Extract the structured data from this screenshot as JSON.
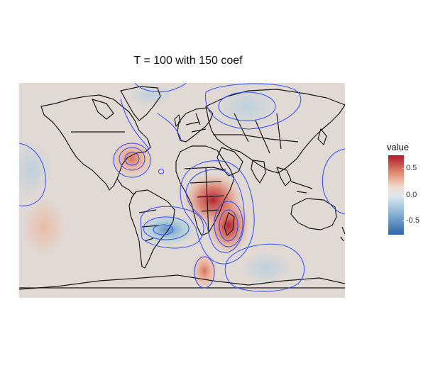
{
  "plot": {
    "title": "T = 100 with 150 coef"
  },
  "legend": {
    "title": "value",
    "ticks": [
      "0.5",
      "0.0",
      "-0.5"
    ]
  },
  "colors": {
    "panel_background": "#e0d9d4",
    "contour": "#2e4bff",
    "coastline": "#1a1a1a",
    "high": "#b2182b",
    "low": "#2166ac"
  }
}
